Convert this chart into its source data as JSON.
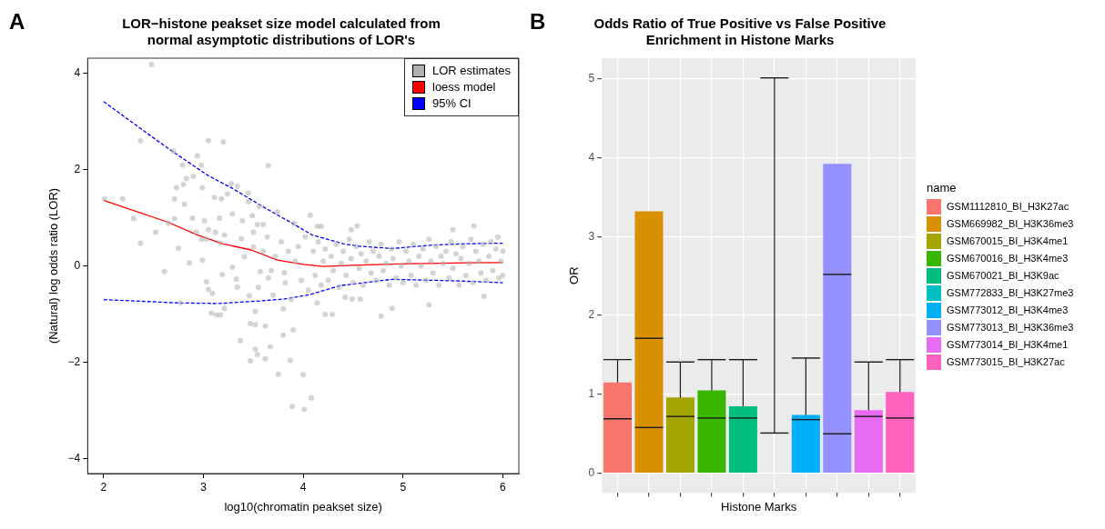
{
  "chart_data": [
    {
      "type": "scatter",
      "title": "LOR−histone peakset size model calculated from normal asymptotic distributions of LOR's",
      "xlabel": "log10(chromatin peakset size)",
      "ylabel": "(Natural) log odds ratio (LOR)",
      "annotations": [
        "A"
      ],
      "xlim": [
        1.84,
        6.16
      ],
      "ylim": [
        -4.31,
        4.31
      ],
      "xticks": [
        2,
        3,
        4,
        5,
        6
      ],
      "yticks": [
        {
          "value": -4,
          "label": "−4"
        },
        {
          "value": -2,
          "label": "−2"
        },
        0,
        2,
        4
      ],
      "grid": false,
      "legend": "top right",
      "series": [
        {
          "name": "LOR estimates",
          "type": "scatter",
          "marker": "circle",
          "color": "#b0b0b0",
          "x": [
            2.48,
            2.01,
            2.19,
            2.3,
            2.37,
            2.37,
            2.52,
            2.61,
            2.65,
            2.7,
            2.71,
            2.71,
            2.73,
            2.75,
            2.77,
            2.79,
            2.8,
            2.81,
            2.83,
            2.86,
            2.89,
            2.9,
            2.94,
            2.93,
            2.98,
            2.98,
            2.99,
            2.99,
            3.03,
            3.03,
            3.01,
            3.05,
            3.05,
            3.05,
            3.08,
            3.09,
            3.11,
            3.12,
            3.13,
            3.17,
            3.16,
            3.17,
            3.19,
            3.2,
            3.18,
            3.21,
            3.21,
            3.24,
            3.29,
            3.28,
            3.29,
            3.33,
            3.34,
            3.34,
            3.37,
            3.38,
            3.39,
            3.41,
            3.45,
            3.45,
            3.46,
            3.47,
            3.47,
            3.49,
            3.5,
            3.52,
            3.54,
            3.52,
            3.52,
            3.54,
            3.56,
            3.57,
            3.6,
            3.62,
            3.62,
            3.65,
            3.65,
            3.67,
            3.7,
            3.75,
            3.8,
            3.81,
            3.87,
            3.89,
            3.9,
            4.0,
            4.01,
            3.74,
            3.8,
            3.88,
            3.91,
            4.08,
            4.07,
            4.22,
            4.29,
            4.78,
            4.89,
            5.26,
            5.81,
            5.71,
            5.5,
            4.54,
            4.48,
            4.14,
            4.18,
            4.14,
            4.49,
            4.42,
            4.57,
            4.1,
            4.12,
            4.15,
            4.18,
            4.2,
            4.22,
            4.25,
            4.28,
            4.3,
            4.33,
            4.36,
            4.38,
            4.4,
            4.43,
            4.46,
            4.48,
            4.5,
            4.53,
            4.56,
            4.58,
            4.6,
            4.63,
            4.66,
            4.68,
            4.7,
            4.73,
            4.76,
            4.78,
            4.8,
            4.83,
            4.86,
            4.88,
            4.9,
            4.93,
            4.96,
            4.98,
            5.0,
            5.03,
            5.06,
            5.08,
            5.1,
            5.13,
            5.16,
            5.18,
            5.2,
            5.23,
            5.26,
            5.28,
            5.3,
            5.33,
            5.36,
            5.38,
            5.4,
            5.43,
            5.46,
            5.48,
            5.5,
            5.53,
            5.56,
            5.58,
            5.6,
            5.63,
            5.66,
            5.68,
            5.7,
            5.73,
            5.76,
            5.78,
            5.8,
            5.83,
            5.86,
            5.88,
            5.9,
            5.93,
            5.96,
            5.98,
            6.0,
            6.0,
            5.95,
            3.95,
            3.98,
            4.02,
            4.05,
            3.92,
            3.85,
            3.82,
            3.78,
            3.72,
            3.68,
            3.64,
            3.6,
            3.55,
            3.5
          ],
          "values": [
            4.18,
            1.39,
            1.39,
            0.98,
            2.6,
            0.47,
            0.7,
            -0.12,
            0.88,
            2.38,
            1.39,
            0.98,
            1.62,
            0.37,
            -0.77,
            2.09,
            1.69,
            1.28,
            1.81,
            0.06,
            0.99,
            1.86,
            2.28,
            0.7,
            0.55,
            2.09,
            1.62,
            0.12,
            0.55,
            -0.33,
            0.94,
            2.6,
            0.75,
            -0.49,
            -0.98,
            -0.57,
            1.42,
            0.7,
            -1.02,
            -1.02,
            0.99,
            0.47,
            -0.18,
            2.57,
            1.39,
            -0.88,
            0.64,
            1.49,
            -0.03,
            1.7,
            1.08,
            -0.28,
            1.65,
            -0.44,
            -1.55,
            0.56,
            0.94,
            0.19,
            1.51,
            1.33,
            -0.62,
            -1.2,
            -1.97,
            1.04,
            0.39,
            -1.73,
            -1.84,
            -1.22,
            -0.95,
            0.86,
            1.23,
            -0.12,
            0.86,
            -1.93,
            -1.25,
            2.08,
            -0.25,
            -1.68,
            -0.61,
            -2.25,
            -1.44,
            -0.14,
            -1.96,
            -2.92,
            -1.33,
            -2.26,
            -2.98,
            1.12,
            -0.89,
            -0.7,
            0.88,
            -2.74,
            1.05,
            -1.01,
            -1.01,
            -1.04,
            -0.88,
            -0.81,
            -0.63,
            0.83,
            0.75,
            0.83,
            0.75,
            0.82,
            0.82,
            -0.77,
            -0.69,
            -0.65,
            -0.69,
            0.3,
            -0.2,
            0.5,
            -0.4,
            0.1,
            0.35,
            -0.3,
            0.2,
            -0.1,
            0.45,
            -0.45,
            0.05,
            0.3,
            -0.2,
            0.55,
            0.15,
            -0.35,
            0.4,
            -0.05,
            0.25,
            -0.4,
            0.1,
            0.5,
            -0.15,
            0.3,
            -0.3,
            0.2,
            0.45,
            -0.1,
            0.05,
            -0.4,
            0.35,
            0.15,
            -0.25,
            0.5,
            0.0,
            -0.35,
            0.3,
            0.1,
            -0.2,
            0.45,
            -0.4,
            0.2,
            0.0,
            0.35,
            -0.3,
            0.55,
            0.1,
            -0.15,
            0.4,
            -0.4,
            0.2,
            0.05,
            0.3,
            -0.25,
            0.5,
            -0.05,
            0.25,
            -0.4,
            0.15,
            0.4,
            -0.2,
            0.05,
            0.55,
            -0.35,
            0.3,
            0.1,
            -0.15,
            0.45,
            -0.3,
            0.2,
            0.5,
            -0.1,
            0.35,
            -0.25,
            0.1,
            0.3,
            -0.2,
            0.6,
            0.4,
            -0.3,
            0.6,
            -0.5,
            0.1,
            0.3,
            -0.35,
            0.5,
            0.2,
            -0.1,
            0.6,
            0.3,
            -0.45,
            0.7
          ]
        },
        {
          "name": "loess model",
          "type": "line",
          "marker": "none",
          "line_style": "solid",
          "color": "#ff0000",
          "x": [
            2.0,
            2.3,
            2.64,
            2.93,
            3.19,
            3.48,
            3.74,
            4.0,
            4.2,
            4.5,
            4.95,
            5.5,
            6.0
          ],
          "values": [
            1.36,
            1.15,
            0.91,
            0.65,
            0.46,
            0.33,
            0.12,
            0.03,
            -0.01,
            0.01,
            0.04,
            0.06,
            0.07
          ]
        },
        {
          "name": "95% CI",
          "type": "line",
          "marker": "none",
          "line_style": "dashed",
          "color": "#0000ff",
          "x": [
            2.0,
            2.47,
            2.7,
            3.05,
            3.28,
            3.62,
            3.91,
            4.09,
            4.4,
            4.55,
            4.89,
            5.29,
            5.64,
            6.0
          ],
          "values": [
            3.41,
            2.7,
            2.36,
            1.87,
            1.62,
            1.2,
            0.86,
            0.64,
            0.46,
            0.41,
            0.36,
            0.43,
            0.46,
            0.47
          ]
        },
        {
          "type": "line",
          "marker": "none",
          "line_style": "dashed",
          "color": "#0000ff",
          "x": [
            2.0,
            2.76,
            3.16,
            3.62,
            3.8,
            4.06,
            4.37,
            4.89,
            5.52,
            6.0
          ],
          "values": [
            -0.7,
            -0.77,
            -0.78,
            -0.72,
            -0.69,
            -0.6,
            -0.41,
            -0.28,
            -0.31,
            -0.35
          ]
        }
      ]
    },
    {
      "type": "bar",
      "title": "Odds Ratio of True Positive vs False Positive Enrichment in Histone Marks",
      "xlabel": "Histone Marks",
      "ylabel": "OR",
      "annotations": [
        "B"
      ],
      "legend_title": "name",
      "legend": "right",
      "grid": true,
      "tick_labels": "y",
      "categories": [
        null,
        null,
        null,
        null,
        null,
        null,
        null,
        null,
        null,
        null
      ],
      "ylim": [
        -0.25,
        5.26
      ],
      "yticks": [
        0,
        1,
        2,
        3,
        4,
        5
      ],
      "series": [
        {
          "name": "GSM1112810_BI_H3K27ac",
          "color": "#f8766d",
          "values": [
            1.15,
            null,
            null,
            null,
            null,
            null,
            null,
            null,
            null,
            null
          ],
          "errors": [
            [
              0.69,
              1.44
            ],
            null,
            null,
            null,
            null,
            null,
            null,
            null,
            null,
            null
          ]
        },
        {
          "name": "GSM669982_BI_H3K36me3",
          "color": "#d89000",
          "values": [
            null,
            3.32,
            null,
            null,
            null,
            null,
            null,
            null,
            null,
            null
          ],
          "errors": [
            null,
            [
              0.58,
              1.71
            ],
            null,
            null,
            null,
            null,
            null,
            null,
            null,
            null
          ]
        },
        {
          "name": "GSM670015_BI_H3K4me1",
          "color": "#a3a500",
          "values": [
            null,
            null,
            0.96,
            null,
            null,
            null,
            null,
            null,
            null,
            null
          ],
          "errors": [
            null,
            null,
            [
              0.72,
              1.41
            ],
            null,
            null,
            null,
            null,
            null,
            null,
            null
          ]
        },
        {
          "name": "GSM670016_BI_H3K4me3",
          "color": "#39b600",
          "values": [
            null,
            null,
            null,
            1.05,
            null,
            null,
            null,
            null,
            null,
            null
          ],
          "errors": [
            null,
            null,
            null,
            [
              0.7,
              1.44
            ],
            null,
            null,
            null,
            null,
            null,
            null
          ]
        },
        {
          "name": "GSM670021_BI_H3K9ac",
          "color": "#00bf7d",
          "values": [
            null,
            null,
            null,
            null,
            0.85,
            null,
            null,
            null,
            null,
            null
          ],
          "errors": [
            null,
            null,
            null,
            null,
            [
              0.7,
              1.44
            ],
            null,
            null,
            null,
            null,
            null
          ]
        },
        {
          "name": "GSM772833_BI_H3K27me3",
          "color": "#00bfc4",
          "values": [
            null,
            null,
            null,
            null,
            null,
            0,
            null,
            null,
            null,
            null
          ],
          "errors": [
            null,
            null,
            null,
            null,
            null,
            [
              0.51,
              5.01
            ],
            null,
            null,
            null,
            null
          ]
        },
        {
          "name": "GSM773012_BI_H3K4me3",
          "color": "#00b0f6",
          "values": [
            null,
            null,
            null,
            null,
            null,
            null,
            0.74,
            null,
            null,
            null
          ],
          "errors": [
            null,
            null,
            null,
            null,
            null,
            null,
            [
              0.68,
              1.46
            ],
            null,
            null,
            null
          ]
        },
        {
          "name": "GSM773013_BI_H3K36me3",
          "color": "#9590ff",
          "values": [
            null,
            null,
            null,
            null,
            null,
            null,
            null,
            3.92,
            null,
            null
          ],
          "errors": [
            null,
            null,
            null,
            null,
            null,
            null,
            null,
            [
              0.5,
              2.52
            ],
            null,
            null
          ]
        },
        {
          "name": "GSM773014_BI_H3K4me1",
          "color": "#e76bf3",
          "values": [
            null,
            null,
            null,
            null,
            null,
            null,
            null,
            null,
            0.8,
            null
          ],
          "errors": [
            null,
            null,
            null,
            null,
            null,
            null,
            null,
            null,
            [
              0.72,
              1.41
            ],
            null
          ]
        },
        {
          "name": "GSM773015_BI_H3K27ac",
          "color": "#ff62bc",
          "values": [
            null,
            null,
            null,
            null,
            null,
            null,
            null,
            null,
            null,
            1.03
          ],
          "errors": [
            null,
            null,
            null,
            null,
            null,
            null,
            null,
            null,
            null,
            [
              0.7,
              1.44
            ]
          ]
        }
      ]
    }
  ]
}
